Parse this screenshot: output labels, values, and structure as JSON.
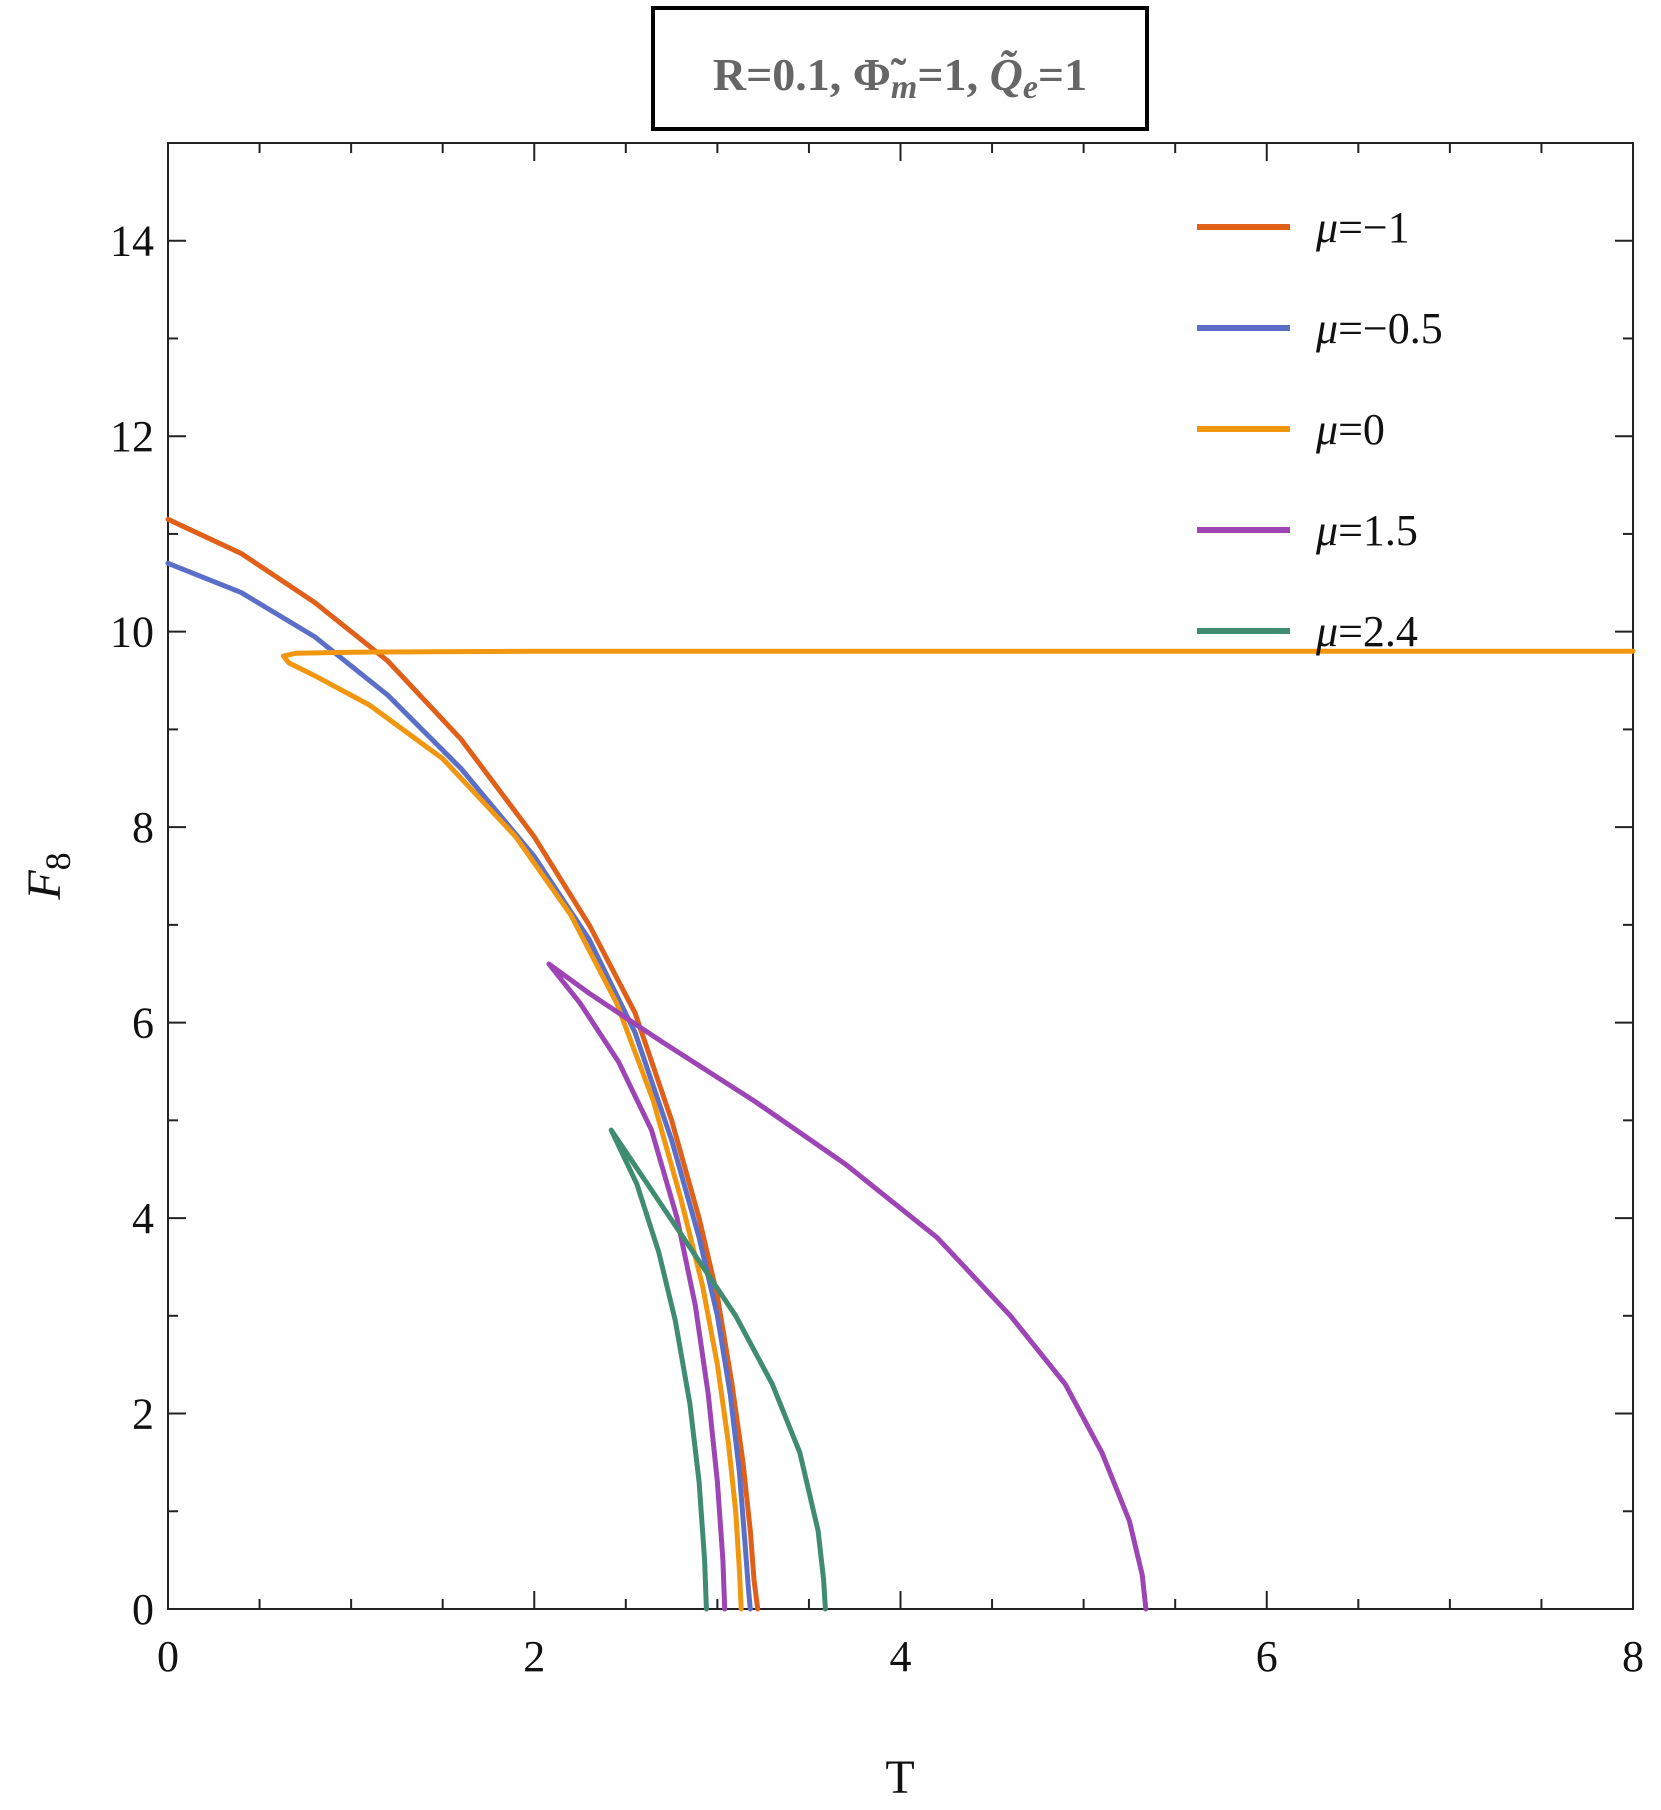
{
  "chart_data": {
    "type": "line",
    "title": "R=0.1, Φ̃m=1, Q̃e=1",
    "title_parts": {
      "prefix": "R=0.1, ",
      "phi_symbol": "Φ̃",
      "phi_sub": "m",
      "phi_value": "=1, ",
      "q_symbol": "Q̃",
      "q_sub": "e",
      "q_value": "=1"
    },
    "xlabel": "T",
    "ylabel_main": "F",
    "ylabel_sub": "8",
    "xlim": [
      0,
      8
    ],
    "ylim": [
      0,
      15
    ],
    "x_ticks": [
      0,
      2,
      4,
      6,
      8
    ],
    "y_ticks": [
      0,
      2,
      4,
      6,
      8,
      10,
      12,
      14
    ],
    "legend_position": "top-right",
    "series": [
      {
        "name": "μ=−1",
        "legend_symbol": "μ",
        "legend_value": "=−1",
        "color": "#e0601a",
        "points": [
          [
            0.0,
            11.15
          ],
          [
            0.4,
            10.8
          ],
          [
            0.8,
            10.3
          ],
          [
            1.2,
            9.7
          ],
          [
            1.6,
            8.9
          ],
          [
            2.0,
            7.9
          ],
          [
            2.3,
            7.0
          ],
          [
            2.55,
            6.1
          ],
          [
            2.75,
            5.0
          ],
          [
            2.9,
            4.0
          ],
          [
            3.0,
            3.2
          ],
          [
            3.08,
            2.3
          ],
          [
            3.14,
            1.5
          ],
          [
            3.18,
            0.8
          ],
          [
            3.2,
            0.3
          ],
          [
            3.22,
            0.0
          ]
        ]
      },
      {
        "name": "μ=−0.5",
        "legend_symbol": "μ",
        "legend_value": "=−0.5",
        "color": "#5b6fc9",
        "points": [
          [
            0.0,
            10.7
          ],
          [
            0.4,
            10.4
          ],
          [
            0.8,
            9.95
          ],
          [
            1.2,
            9.35
          ],
          [
            1.6,
            8.6
          ],
          [
            2.0,
            7.7
          ],
          [
            2.3,
            6.85
          ],
          [
            2.55,
            5.9
          ],
          [
            2.75,
            4.8
          ],
          [
            2.9,
            3.8
          ],
          [
            3.0,
            3.0
          ],
          [
            3.07,
            2.2
          ],
          [
            3.12,
            1.4
          ],
          [
            3.15,
            0.7
          ],
          [
            3.17,
            0.2
          ],
          [
            3.18,
            0.0
          ]
        ]
      },
      {
        "name": "μ=0",
        "legend_symbol": "μ",
        "legend_value": "=0",
        "color": "#f0960f",
        "points": [
          [
            8.0,
            9.8
          ],
          [
            4.0,
            9.8
          ],
          [
            2.0,
            9.8
          ],
          [
            1.0,
            9.79
          ],
          [
            0.7,
            9.78
          ],
          [
            0.63,
            9.75
          ],
          [
            0.66,
            9.68
          ],
          [
            0.8,
            9.55
          ],
          [
            1.1,
            9.25
          ],
          [
            1.5,
            8.7
          ],
          [
            1.9,
            7.9
          ],
          [
            2.2,
            7.1
          ],
          [
            2.45,
            6.2
          ],
          [
            2.65,
            5.2
          ],
          [
            2.8,
            4.2
          ],
          [
            2.92,
            3.3
          ],
          [
            3.0,
            2.5
          ],
          [
            3.06,
            1.7
          ],
          [
            3.1,
            1.0
          ],
          [
            3.12,
            0.4
          ],
          [
            3.13,
            0.0
          ]
        ]
      },
      {
        "name": "μ=1.5",
        "legend_symbol": "μ",
        "legend_value": "=1.5",
        "color": "#9e45b5",
        "points": [
          [
            3.04,
            0.0
          ],
          [
            3.03,
            0.5
          ],
          [
            3.0,
            1.3
          ],
          [
            2.95,
            2.2
          ],
          [
            2.88,
            3.1
          ],
          [
            2.78,
            4.0
          ],
          [
            2.64,
            4.9
          ],
          [
            2.46,
            5.6
          ],
          [
            2.25,
            6.2
          ],
          [
            2.08,
            6.6
          ],
          [
            2.3,
            6.3
          ],
          [
            2.7,
            5.8
          ],
          [
            3.2,
            5.2
          ],
          [
            3.7,
            4.55
          ],
          [
            4.2,
            3.8
          ],
          [
            4.6,
            3.0
          ],
          [
            4.9,
            2.3
          ],
          [
            5.1,
            1.6
          ],
          [
            5.25,
            0.9
          ],
          [
            5.32,
            0.35
          ],
          [
            5.34,
            0.0
          ]
        ]
      },
      {
        "name": "μ=2.4",
        "legend_symbol": "μ",
        "legend_value": "=2.4",
        "color": "#3f8c70",
        "points": [
          [
            2.94,
            0.0
          ],
          [
            2.93,
            0.5
          ],
          [
            2.9,
            1.3
          ],
          [
            2.85,
            2.1
          ],
          [
            2.77,
            2.95
          ],
          [
            2.68,
            3.65
          ],
          [
            2.56,
            4.35
          ],
          [
            2.42,
            4.9
          ],
          [
            2.6,
            4.4
          ],
          [
            2.85,
            3.7
          ],
          [
            3.1,
            3.0
          ],
          [
            3.3,
            2.3
          ],
          [
            3.45,
            1.6
          ],
          [
            3.55,
            0.8
          ],
          [
            3.58,
            0.3
          ],
          [
            3.59,
            0.0
          ]
        ]
      }
    ]
  }
}
